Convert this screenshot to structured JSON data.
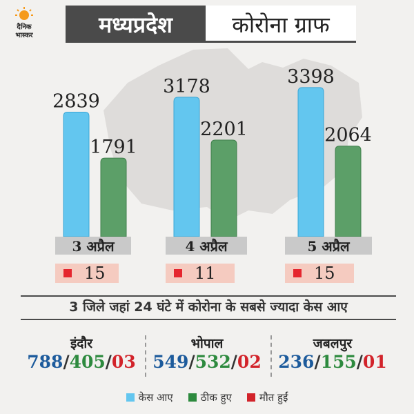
{
  "header": {
    "logo_line1": "दैनिक",
    "logo_line2": "भास्कर",
    "title_left": "मध्यप्रदेश",
    "title_right": "कोरोना ग्राफ"
  },
  "colors": {
    "cases": "#63c6ef",
    "recovered": "#5c9f68",
    "deaths": "#e5262e",
    "death_box_bg": "#f5cbc0",
    "date_box_bg": "#c9c9c9"
  },
  "chart_data": {
    "type": "bar",
    "categories": [
      "3 अप्रैल",
      "4 अप्रैल",
      "5 अप्रैल"
    ],
    "series": [
      {
        "name": "केस आए",
        "values": [
          2839,
          3178,
          3398
        ]
      },
      {
        "name": "ठीक हुए",
        "values": [
          1791,
          2201,
          2064
        ]
      }
    ],
    "deaths": [
      15,
      11,
      15
    ],
    "value_labels": {
      "cases": [
        "2839",
        "3178",
        "3398"
      ],
      "recovered": [
        "1791",
        "2201",
        "2064"
      ],
      "deaths": [
        "15",
        "11",
        "15"
      ]
    },
    "ylim": [
      0,
      3900
    ]
  },
  "districts_section": {
    "title": "3 जिले जहां 24 घंटे में कोरोना के सबसे ज्यादा केस आए",
    "districts": [
      {
        "name": "इंदौर",
        "cases": "788",
        "recovered": "405",
        "deaths": "03"
      },
      {
        "name": "भोपाल",
        "cases": "549",
        "recovered": "532",
        "deaths": "02"
      },
      {
        "name": "जबलपुर",
        "cases": "236",
        "recovered": "155",
        "deaths": "01"
      }
    ]
  },
  "legend": {
    "cases": "केस आए",
    "recovered": "ठीक हुए",
    "deaths": "मौत हुईं"
  }
}
